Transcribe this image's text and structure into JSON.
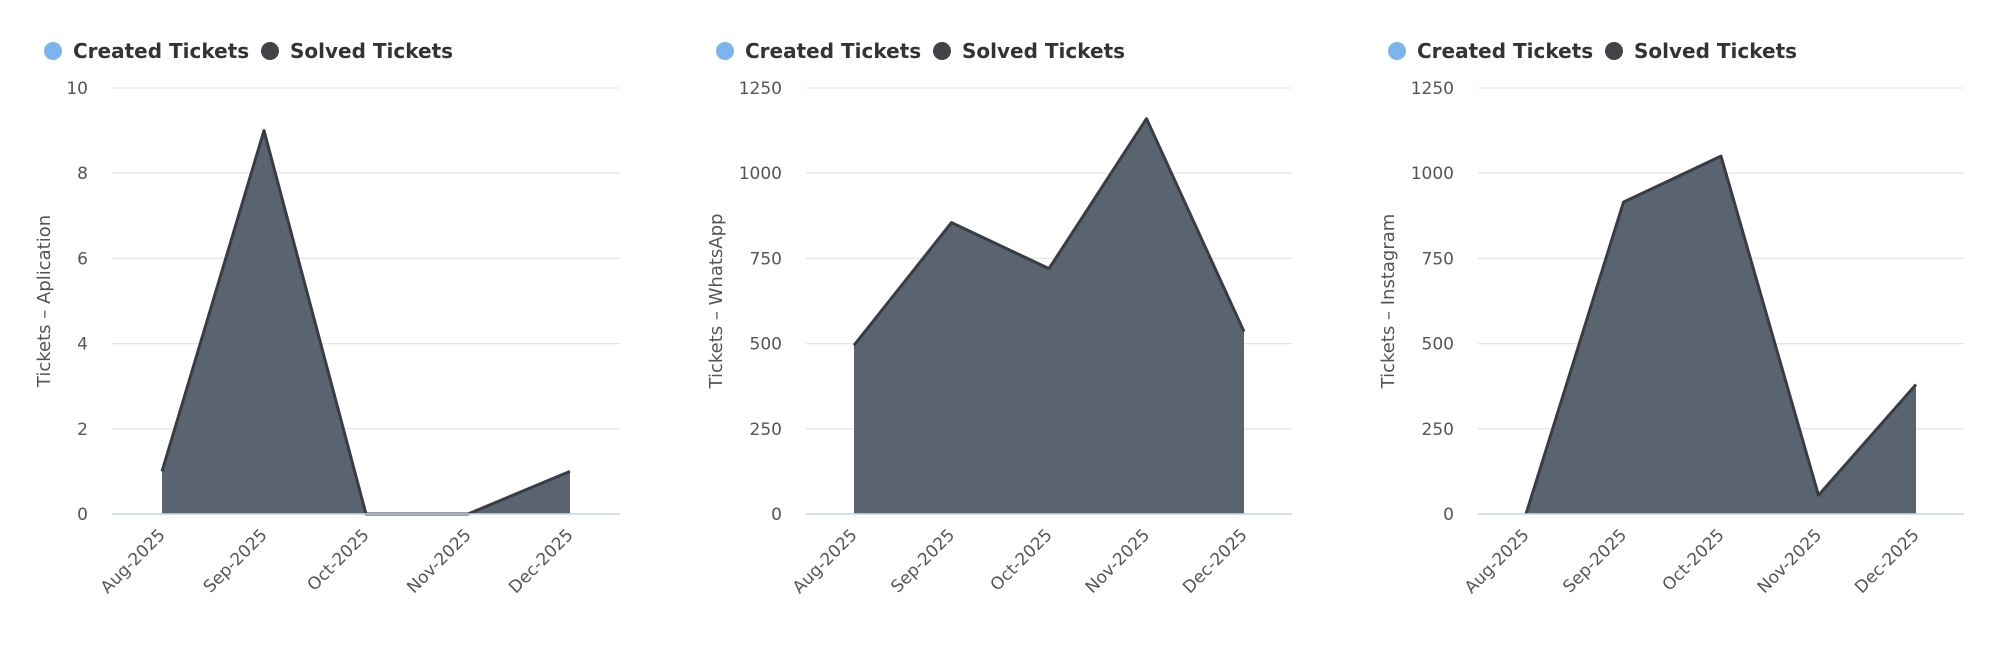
{
  "legend": [
    {
      "label": "Created Tickets",
      "color": "#7cb5ec"
    },
    {
      "label": "Solved Tickets",
      "color": "#434348"
    }
  ],
  "colors": {
    "area_fill": "#5a6470",
    "area_line": "#3a3c44",
    "grid": "#e6e6e6",
    "axis": "#ccd6eb"
  },
  "chart_data": [
    {
      "type": "area",
      "ylabel": "Tickets – Aplication",
      "categories": [
        "Aug-2025",
        "Sep-2025",
        "Oct-2025",
        "Nov-2025",
        "Dec-2025"
      ],
      "ylim": [
        0,
        10
      ],
      "yticks": [
        0,
        2,
        4,
        6,
        8,
        10
      ],
      "series": [
        {
          "name": "Created Tickets",
          "values": [
            1,
            9,
            0,
            0,
            1
          ]
        }
      ]
    },
    {
      "type": "area",
      "ylabel": "Tickets – WhatsApp",
      "categories": [
        "Aug-2025",
        "Sep-2025",
        "Oct-2025",
        "Nov-2025",
        "Dec-2025"
      ],
      "ylim": [
        0,
        1250
      ],
      "yticks": [
        0,
        250,
        500,
        750,
        1000,
        1250
      ],
      "series": [
        {
          "name": "Created Tickets",
          "values": [
            495,
            855,
            720,
            1160,
            535
          ]
        }
      ]
    },
    {
      "type": "area",
      "ylabel": "Tickets – Instagram",
      "categories": [
        "Aug-2025",
        "Sep-2025",
        "Oct-2025",
        "Nov-2025",
        "Dec-2025"
      ],
      "ylim": [
        0,
        1250
      ],
      "yticks": [
        0,
        250,
        500,
        750,
        1000,
        1250
      ],
      "series": [
        {
          "name": "Created Tickets",
          "values": [
            0,
            915,
            1050,
            55,
            380
          ]
        }
      ]
    }
  ]
}
